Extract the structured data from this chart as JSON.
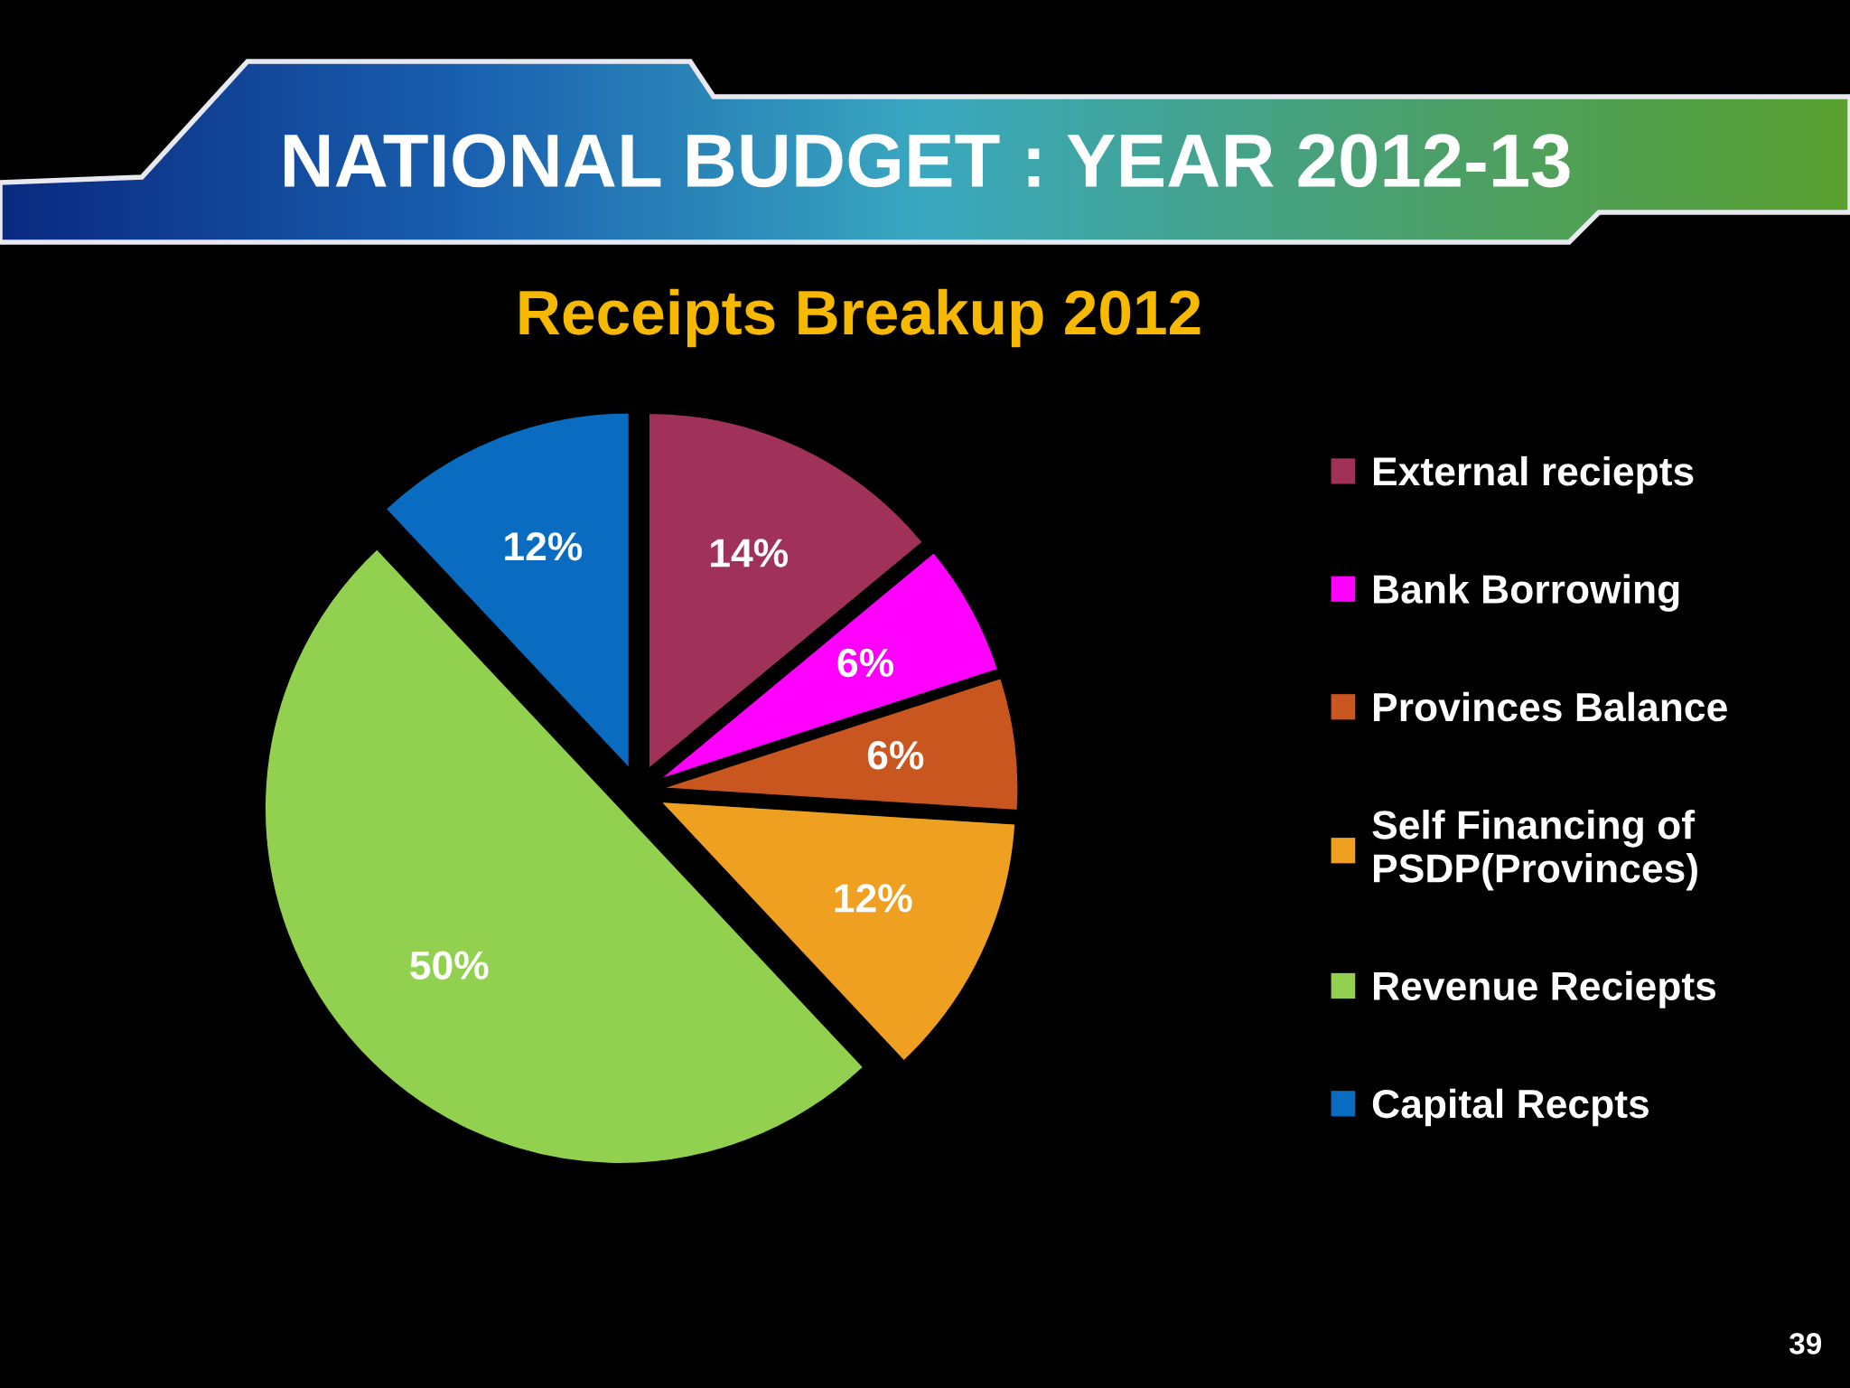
{
  "chart_data": {
    "type": "pie",
    "title": "NATIONAL BUDGET : YEAR 2012-13",
    "subtitle": "Receipts Breakup 2012",
    "categories": [
      "External reciepts",
      "Bank Borrowing",
      "Provinces Balance",
      "Self Financing of\nPSDP(Provinces)",
      "Revenue Reciepts",
      "Capital Recpts"
    ],
    "values": [
      14,
      6,
      6,
      12,
      50,
      12
    ],
    "colors": [
      "#a0325a",
      "#ff00ff",
      "#c8561e",
      "#f0a020",
      "#92d050",
      "#0a6cc0"
    ],
    "value_labels": [
      "14%",
      "6%",
      "6%",
      "12%",
      "50%",
      "12%"
    ],
    "legend": "right",
    "annotations": [
      "39"
    ]
  }
}
